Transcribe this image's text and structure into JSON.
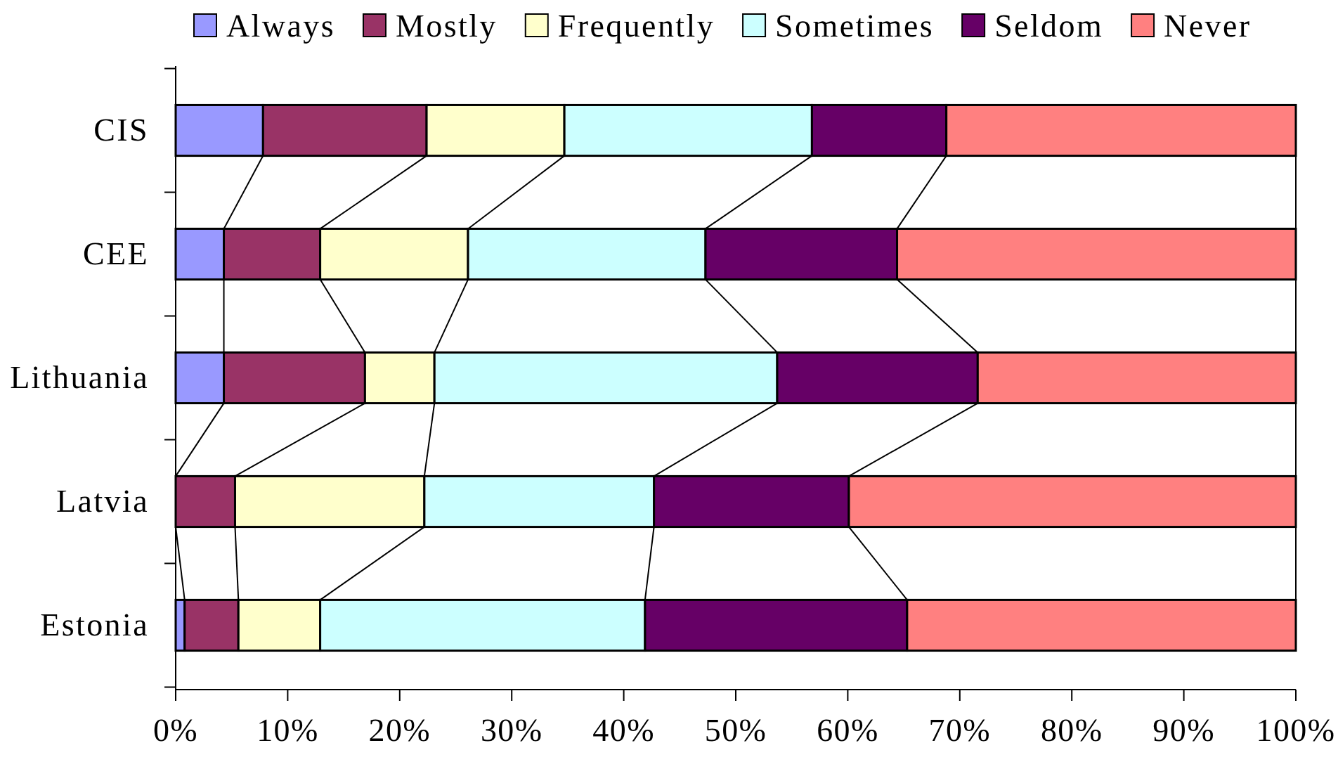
{
  "chart_data": {
    "type": "bar",
    "orientation": "horizontal",
    "stacked": true,
    "categories": [
      "CIS",
      "CEE",
      "Lithuania",
      "Latvia",
      "Estonia"
    ],
    "series": [
      {
        "name": "Always",
        "color": "#9999ff",
        "values": [
          7.8,
          4.3,
          4.3,
          0,
          0.8
        ]
      },
      {
        "name": "Mostly",
        "color": "#993366",
        "values": [
          14.6,
          8.6,
          12.6,
          5.3,
          4.8
        ]
      },
      {
        "name": "Frequently",
        "color": "#ffffcc",
        "values": [
          12.3,
          13.2,
          6.2,
          16.9,
          7.3
        ]
      },
      {
        "name": "Sometimes",
        "color": "#ccffff",
        "values": [
          22.1,
          21.2,
          30.6,
          20.5,
          29.0
        ]
      },
      {
        "name": "Seldom",
        "color": "#660066",
        "values": [
          12.0,
          17.1,
          17.9,
          17.4,
          23.4
        ]
      },
      {
        "name": "Never",
        "color": "#ff8080",
        "values": [
          31.2,
          35.6,
          28.4,
          39.9,
          34.7
        ]
      }
    ],
    "xlim": [
      0,
      100
    ],
    "xticks": [
      {
        "value": 0,
        "label": "0%"
      },
      {
        "value": 10,
        "label": "10%"
      },
      {
        "value": 20,
        "label": "20%"
      },
      {
        "value": 30,
        "label": "30%"
      },
      {
        "value": 40,
        "label": "40%"
      },
      {
        "value": 50,
        "label": "50%"
      },
      {
        "value": 60,
        "label": "60%"
      },
      {
        "value": 70,
        "label": "70%"
      },
      {
        "value": 80,
        "label": "80%"
      },
      {
        "value": 90,
        "label": "90%"
      },
      {
        "value": 100,
        "label": "100%"
      }
    ],
    "legend": "top"
  }
}
